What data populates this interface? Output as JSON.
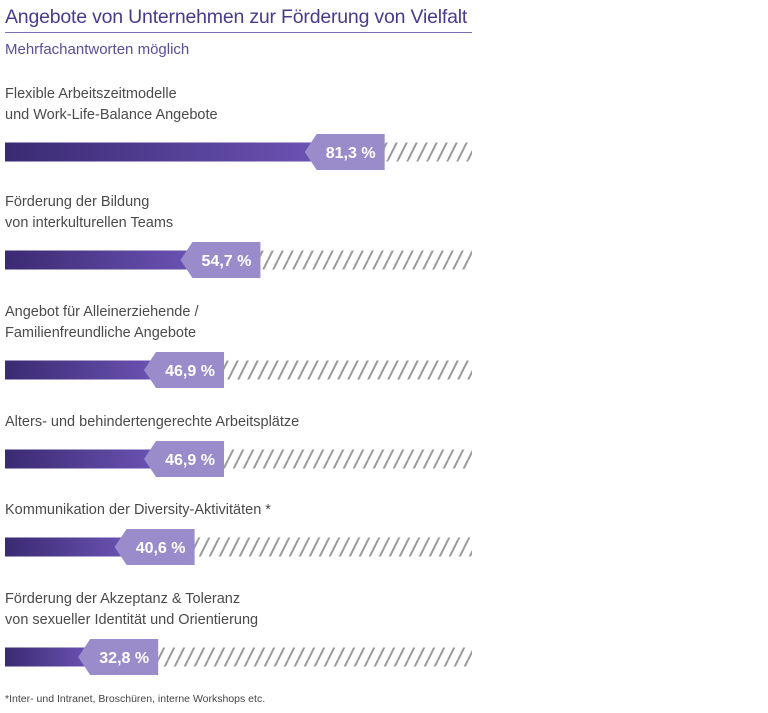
{
  "chart_data": {
    "type": "bar",
    "title": "Angebote von Unternehmen zur Förderung von Vielfalt",
    "subtitle": "Mehrfachantworten möglich",
    "categories": [
      [
        "Flexible Arbeitszeitmodelle",
        "und Work-Life-Balance Angebote"
      ],
      [
        "Förderung der Bildung",
        "von interkulturellen Teams"
      ],
      [
        "Angebot für Alleinerziehende /",
        "Familienfreundliche Angebote"
      ],
      [
        "Alters- und behindertengerechte Arbeitsplätze"
      ],
      [
        "Kommunikation der Diversity-Aktivitäten *"
      ],
      [
        "Förderung der Akzeptanz & Toleranz",
        "von sexueller Identität und Orientierung"
      ]
    ],
    "values": [
      81.3,
      54.7,
      46.9,
      46.9,
      40.6,
      32.8
    ],
    "value_labels": [
      "81,3 %",
      "54,7 %",
      "46,9 %",
      "46,9 %",
      "40,6 %",
      "32,8 %"
    ],
    "xlim": [
      0,
      100
    ],
    "orientation": "horizontal",
    "colors": {
      "title": "#4b3a8c",
      "bar_dark": "#3a2a72",
      "bar_light": "#6a53b3",
      "label_box": "#9a8ccb",
      "hatch": "#9a9a9a",
      "text": "#4a4a4a"
    }
  },
  "footnote": "*Inter- und Intranet, Broschüren, interne Workshops etc."
}
